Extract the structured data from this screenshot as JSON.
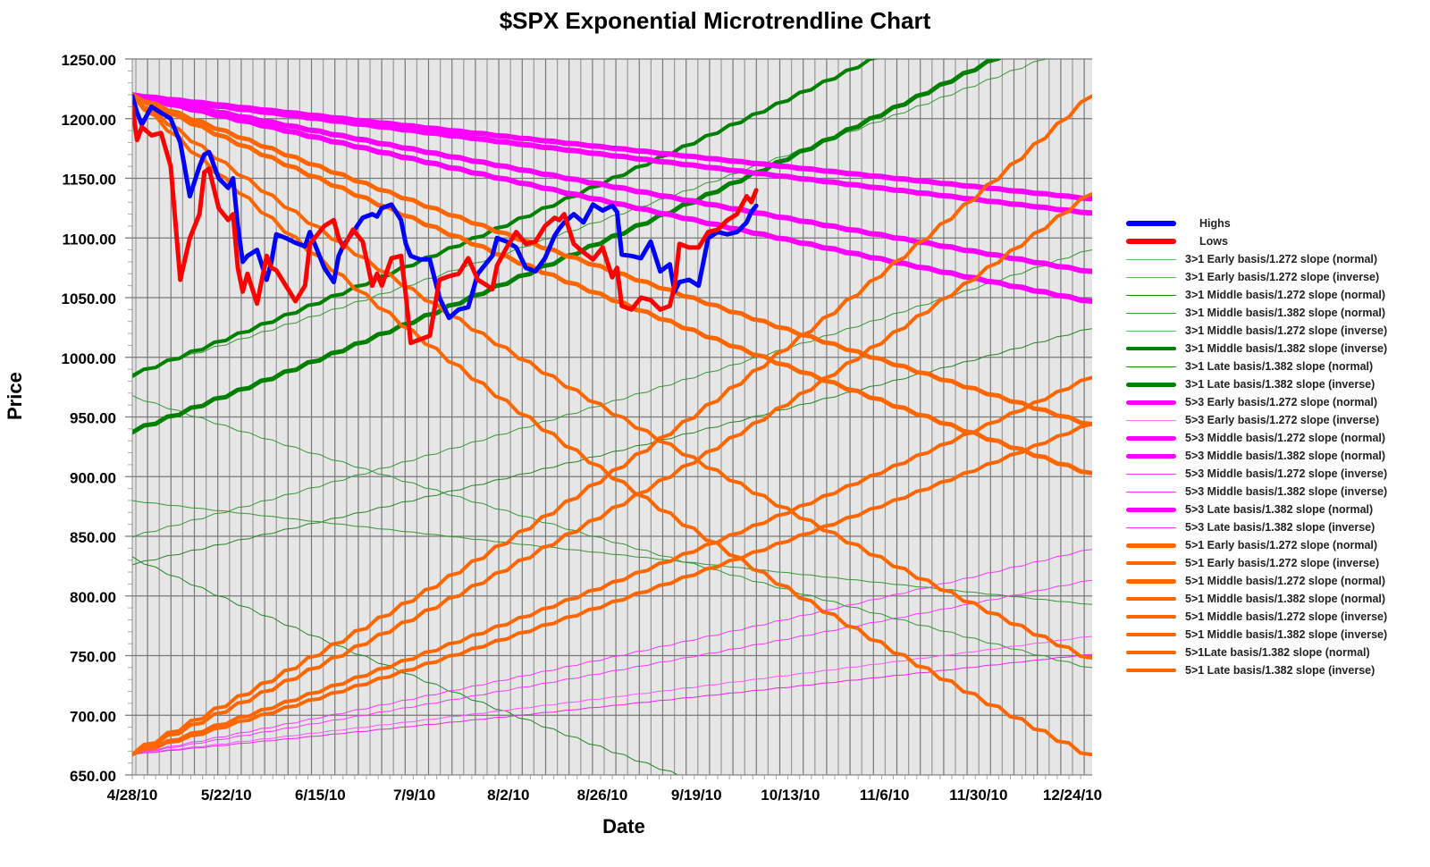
{
  "chart_data": {
    "type": "line",
    "title": "$SPX Exponential Microtrendline Chart",
    "xlabel": "Date",
    "ylabel": "Price",
    "ylim": [
      650,
      1250
    ],
    "yticks": [
      "1250.00",
      "1200.00",
      "1150.00",
      "1100.00",
      "1050.00",
      "1000.00",
      "950.00",
      "900.00",
      "850.00",
      "800.00",
      "750.00",
      "700.00",
      "650.00"
    ],
    "xticks": [
      "4/28/10",
      "5/22/10",
      "6/15/10",
      "7/9/10",
      "8/2/10",
      "8/26/10",
      "9/19/10",
      "10/13/10",
      "11/6/10",
      "11/30/10",
      "12/24/10"
    ],
    "grid": true,
    "legend_position": "right",
    "series": [
      {
        "name": "Highs",
        "color": "#0000ff",
        "width": 5,
        "x": [
          0.0,
          0.005,
          0.01,
          0.02,
          0.03,
          0.04,
          0.05,
          0.06,
          0.07,
          0.075,
          0.08,
          0.09,
          0.1,
          0.105,
          0.11,
          0.115,
          0.12,
          0.13,
          0.14,
          0.145,
          0.15,
          0.16,
          0.17,
          0.18,
          0.185,
          0.19,
          0.2,
          0.21,
          0.215,
          0.22,
          0.23,
          0.24,
          0.25,
          0.255,
          0.26,
          0.27,
          0.28,
          0.285,
          0.29,
          0.3,
          0.31,
          0.32,
          0.33,
          0.34,
          0.35,
          0.36,
          0.37,
          0.375,
          0.38,
          0.39,
          0.4,
          0.41,
          0.42,
          0.43,
          0.44,
          0.445,
          0.45,
          0.46,
          0.47,
          0.48,
          0.49,
          0.5,
          0.505,
          0.51,
          0.52,
          0.53,
          0.54,
          0.55,
          0.56,
          0.565,
          0.57,
          0.58,
          0.59,
          0.6,
          0.61,
          0.62,
          0.63,
          0.64,
          0.645,
          0.65
        ],
        "values": [
          1219,
          1205,
          1195,
          1210,
          1205,
          1200,
          1180,
          1135,
          1160,
          1170,
          1172,
          1150,
          1142,
          1150,
          1110,
          1080,
          1085,
          1090,
          1065,
          1080,
          1103,
          1100,
          1096,
          1093,
          1105,
          1095,
          1075,
          1063,
          1085,
          1094,
          1105,
          1117,
          1120,
          1118,
          1125,
          1128,
          1115,
          1095,
          1085,
          1082,
          1082,
          1050,
          1033,
          1040,
          1042,
          1070,
          1080,
          1085,
          1100,
          1097,
          1092,
          1075,
          1072,
          1083,
          1102,
          1108,
          1113,
          1120,
          1113,
          1128,
          1123,
          1127,
          1122,
          1086,
          1085,
          1083,
          1097,
          1072,
          1078,
          1055,
          1063,
          1065,
          1060,
          1100,
          1105,
          1103,
          1105,
          1113,
          1122,
          1127
        ]
      },
      {
        "name": "Lows",
        "color": "#ff0000",
        "width": 5,
        "x": [
          0.0,
          0.005,
          0.01,
          0.02,
          0.03,
          0.04,
          0.05,
          0.06,
          0.07,
          0.075,
          0.08,
          0.09,
          0.1,
          0.105,
          0.11,
          0.115,
          0.12,
          0.13,
          0.14,
          0.145,
          0.15,
          0.16,
          0.17,
          0.18,
          0.185,
          0.19,
          0.2,
          0.21,
          0.215,
          0.22,
          0.23,
          0.24,
          0.25,
          0.255,
          0.26,
          0.27,
          0.28,
          0.285,
          0.29,
          0.3,
          0.31,
          0.32,
          0.33,
          0.34,
          0.35,
          0.36,
          0.37,
          0.375,
          0.38,
          0.39,
          0.4,
          0.41,
          0.42,
          0.43,
          0.44,
          0.445,
          0.45,
          0.46,
          0.47,
          0.48,
          0.49,
          0.5,
          0.505,
          0.51,
          0.52,
          0.53,
          0.54,
          0.55,
          0.56,
          0.565,
          0.57,
          0.58,
          0.59,
          0.6,
          0.61,
          0.62,
          0.63,
          0.64,
          0.645,
          0.65
        ],
        "values": [
          1210,
          1182,
          1193,
          1186,
          1188,
          1160,
          1065,
          1100,
          1120,
          1155,
          1158,
          1125,
          1115,
          1120,
          1075,
          1055,
          1070,
          1045,
          1085,
          1075,
          1073,
          1060,
          1047,
          1060,
          1095,
          1100,
          1110,
          1115,
          1100,
          1092,
          1107,
          1097,
          1060,
          1070,
          1060,
          1083,
          1085,
          1052,
          1012,
          1015,
          1018,
          1065,
          1068,
          1070,
          1083,
          1065,
          1060,
          1057,
          1077,
          1092,
          1105,
          1095,
          1097,
          1110,
          1117,
          1115,
          1120,
          1095,
          1088,
          1082,
          1092,
          1067,
          1075,
          1043,
          1040,
          1050,
          1048,
          1040,
          1043,
          1060,
          1095,
          1092,
          1092,
          1105,
          1107,
          1115,
          1120,
          1135,
          1130,
          1140
        ]
      },
      {
        "name": "3>1 Early basis/1.272 slope (normal)",
        "color": "#339933",
        "width": 1,
        "start": 849,
        "end": 1090
      },
      {
        "name": "3>1 Early basis/1.272 slope (inverse)",
        "color": "#339933",
        "width": 1,
        "start": 968,
        "end": 740
      },
      {
        "name": "3>1 Middle basis/1.272 slope (normal)",
        "color": "#228822",
        "width": 1,
        "start": 826,
        "end": 1024
      },
      {
        "name": "3>1 Middle basis/1.382 slope (normal)",
        "color": "#339933",
        "width": 1,
        "start": 986,
        "end": 1265
      },
      {
        "name": "3>1 Middle basis/1.272 slope (inverse)",
        "color": "#339933",
        "width": 1,
        "start": 880,
        "end": 793
      },
      {
        "name": "3>1 Middle basis/1.382 slope (inverse)",
        "color": "#008000",
        "width": 4,
        "start": 984,
        "end": 1340
      },
      {
        "name": "3>1 Late basis/1.382 slope (normal)",
        "color": "#228822",
        "width": 1,
        "start": 833,
        "end": 540
      },
      {
        "name": "3>1 Late basis/1.382 slope (inverse)",
        "color": "#008000",
        "width": 5,
        "start": 937,
        "end": 1290
      },
      {
        "name": "5>3 Early basis/1.272 slope (normal)",
        "color": "#ff00ff",
        "width": 6,
        "start": 1220,
        "end": 1133
      },
      {
        "name": "5>3 Early basis/1.272 slope (inverse)",
        "color": "#ff55ff",
        "width": 1,
        "start": 667,
        "end": 766
      },
      {
        "name": "5>3 Middle basis/1.272 slope (normal)",
        "color": "#ff00ff",
        "width": 6,
        "start": 1220,
        "end": 1121
      },
      {
        "name": "5>3 Middle basis/1.382 slope (normal)",
        "color": "#ff00ff",
        "width": 6,
        "start": 1220,
        "end": 1072
      },
      {
        "name": "5>3 Middle basis/1.272 slope (inverse)",
        "color": "#ff33ff",
        "width": 1,
        "start": 667,
        "end": 813
      },
      {
        "name": "5>3 Middle basis/1.382 slope (inverse)",
        "color": "#ff33ff",
        "width": 1,
        "start": 667,
        "end": 839
      },
      {
        "name": "5>3 Late basis/1.382 slope (normal)",
        "color": "#ff00ff",
        "width": 6,
        "start": 1220,
        "end": 1047
      },
      {
        "name": "5>3 Late basis/1.382 slope (inverse)",
        "color": "#ee22ee",
        "width": 1,
        "start": 667,
        "end": 751
      },
      {
        "name": "5>1 Early basis/1.272 slope (normal)",
        "color": "#ff6600",
        "width": 5,
        "start": 1220,
        "end": 944
      },
      {
        "name": "5>1 Early basis/1.272 slope (inverse)",
        "color": "#ff6600",
        "width": 4,
        "start": 667,
        "end": 983
      },
      {
        "name": "5>1 Middle basis/1.272 slope (normal)",
        "color": "#ff6600",
        "width": 5,
        "start": 1220,
        "end": 903
      },
      {
        "name": "5>1 Middle basis/1.382 slope (normal)",
        "color": "#ff6600",
        "width": 4,
        "start": 1220,
        "end": 748
      },
      {
        "name": "5>1 Middle basis/1.272 slope (inverse)",
        "color": "#ff6600",
        "width": 4,
        "start": 667,
        "end": 944
      },
      {
        "name": "5>1 Middle basis/1.382 slope (inverse)",
        "color": "#ff6600",
        "width": 4,
        "start": 667,
        "end": 1137
      },
      {
        "name": "5>1Late basis/1.382 slope (normal)",
        "color": "#ff6600",
        "width": 4,
        "start": 1220,
        "end": 667
      },
      {
        "name": "5>1 Late basis/1.382 slope (inverse)",
        "color": "#ff6600",
        "width": 4,
        "start": 667,
        "end": 1219
      }
    ]
  },
  "legend": {
    "items": [
      {
        "label": "Highs",
        "color": "#0000ff",
        "width": 6
      },
      {
        "label": "Lows",
        "color": "#ff0000",
        "width": 6
      },
      {
        "label": "3>1 Early basis/1.272 slope (normal)",
        "color": "#66bb66",
        "width": 1
      },
      {
        "label": "3>1 Early basis/1.272 slope (inverse)",
        "color": "#66bb66",
        "width": 1
      },
      {
        "label": "3>1 Middle basis/1.272 slope (normal)",
        "color": "#228822",
        "width": 1
      },
      {
        "label": "3>1 Middle basis/1.382 slope (normal)",
        "color": "#339933",
        "width": 1
      },
      {
        "label": "3>1 Middle basis/1.272 slope (inverse)",
        "color": "#66bb66",
        "width": 1
      },
      {
        "label": "3>1 Middle basis/1.382 slope (inverse)",
        "color": "#008000",
        "width": 4
      },
      {
        "label": "3>1 Late basis/1.382 slope (normal)",
        "color": "#228822",
        "width": 1
      },
      {
        "label": "3>1 Late basis/1.382 slope (inverse)",
        "color": "#008000",
        "width": 5
      },
      {
        "label": "5>3 Early basis/1.272 slope (normal)",
        "color": "#ff00ff",
        "width": 5
      },
      {
        "label": "5>3 Early basis/1.272 slope (inverse)",
        "color": "#ff77ff",
        "width": 1
      },
      {
        "label": "5>3 Middle basis/1.272 slope (normal)",
        "color": "#ff00ff",
        "width": 5
      },
      {
        "label": "5>3 Middle basis/1.382 slope (normal)",
        "color": "#ff00ff",
        "width": 5
      },
      {
        "label": "5>3 Middle basis/1.272 slope (inverse)",
        "color": "#ff33ff",
        "width": 1
      },
      {
        "label": "5>3 Middle basis/1.382 slope (inverse)",
        "color": "#ff33ff",
        "width": 1
      },
      {
        "label": "5>3 Late basis/1.382 slope (normal)",
        "color": "#ff00ff",
        "width": 5
      },
      {
        "label": "5>3 Late basis/1.382 slope (inverse)",
        "color": "#ff33ff",
        "width": 1
      },
      {
        "label": "5>1 Early basis/1.272 slope (normal)",
        "color": "#ff6600",
        "width": 5
      },
      {
        "label": "5>1 Early basis/1.272 slope (inverse)",
        "color": "#ff6600",
        "width": 4
      },
      {
        "label": "5>1 Middle basis/1.272 slope (normal)",
        "color": "#ff6600",
        "width": 5
      },
      {
        "label": "5>1 Middle basis/1.382 slope (normal)",
        "color": "#ff6600",
        "width": 4
      },
      {
        "label": "5>1 Middle basis/1.272 slope (inverse)",
        "color": "#ff6600",
        "width": 4
      },
      {
        "label": "5>1 Middle basis/1.382 slope (inverse)",
        "color": "#ff6600",
        "width": 4
      },
      {
        "label": "5>1Late basis/1.382 slope (normal)",
        "color": "#ff6600",
        "width": 4
      },
      {
        "label": "5>1 Late basis/1.382 slope (inverse)",
        "color": "#ff6600",
        "width": 4
      }
    ]
  },
  "colors": {
    "plot_background": "#e6e6e6",
    "grid_major": "#777777",
    "grid_minor": "#999999"
  }
}
